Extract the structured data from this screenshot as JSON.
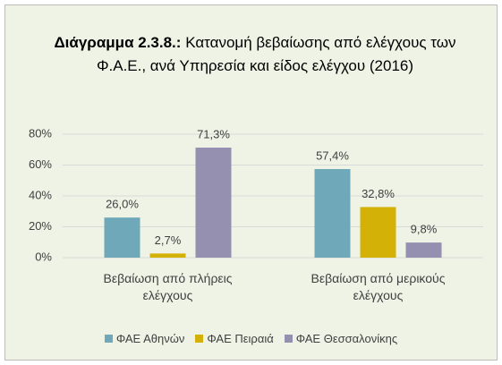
{
  "chart_data": {
    "type": "bar",
    "title_label": "Διάγραμμα 2.3.8.:",
    "title": "Κατανομή βεβαίωσης από ελέγχους των Φ.Α.Ε., ανά Υπηρεσία και είδος ελέγχου (2016)",
    "categories": [
      "Βεβαίωση από πλήρεις ελέγχους",
      "Βεβαίωση από μερικούς ελέγχους"
    ],
    "series": [
      {
        "name": "ΦΑΕ Αθηνών",
        "color": "#6fa8b8",
        "values": [
          26.0,
          57.4
        ],
        "value_labels": [
          "26,0%",
          "57,4%"
        ]
      },
      {
        "name": "ΦΑΕ Πειραιά",
        "color": "#d4b106",
        "values": [
          2.7,
          32.8
        ],
        "value_labels": [
          "2,7%",
          "32,8%"
        ]
      },
      {
        "name": "ΦΑΕ Θεσσαλονίκης",
        "color": "#9590b0",
        "values": [
          71.3,
          9.8
        ],
        "value_labels": [
          "71,3%",
          "9,8%"
        ]
      }
    ],
    "ylim": [
      0,
      80
    ],
    "yticks": [
      {
        "value": 0,
        "label": "0%"
      },
      {
        "value": 20,
        "label": "20%"
      },
      {
        "value": 40,
        "label": "40%"
      },
      {
        "value": 60,
        "label": "60%"
      },
      {
        "value": 80,
        "label": "80%"
      }
    ],
    "grid": true
  }
}
